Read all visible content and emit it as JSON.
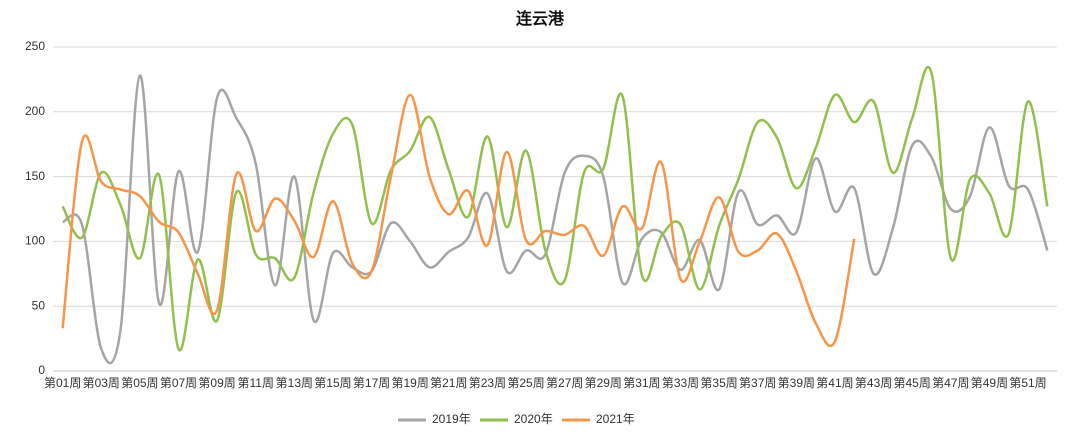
{
  "chart_data": {
    "type": "line",
    "title": "连云港",
    "categories": [
      "第01周",
      null,
      "第03周",
      null,
      "第05周",
      null,
      "第07周",
      null,
      "第09周",
      null,
      "第11周",
      null,
      "第13周",
      null,
      "第15周",
      null,
      "第17周",
      null,
      "第19周",
      null,
      "第21周",
      null,
      "第23周",
      null,
      "第25周",
      null,
      "第27周",
      null,
      "第29周",
      null,
      "第31周",
      null,
      "第33周",
      null,
      "第35周",
      null,
      "第37周",
      null,
      "第39周",
      null,
      "第41周",
      null,
      "第43周",
      null,
      "第45周",
      null,
      "第47周",
      null,
      "第49周",
      null,
      "第51周",
      null
    ],
    "series": [
      {
        "name": "2019年",
        "color": "#a5a5a5",
        "values": [
          115,
          113,
          17,
          32,
          228,
          52,
          154,
          92,
          211,
          195,
          160,
          66,
          150,
          39,
          91,
          80,
          77,
          114,
          100,
          80,
          92,
          103,
          137,
          77,
          93,
          90,
          153,
          166,
          150,
          68,
          102,
          107,
          78,
          101,
          63,
          138,
          113,
          120,
          107,
          164,
          123,
          141,
          75,
          110,
          174,
          165,
          125,
          135,
          188,
          143,
          140,
          93
        ]
      },
      {
        "name": "2020年",
        "color": "#92c04e",
        "values": [
          127,
          103,
          153,
          128,
          87,
          151,
          17,
          86,
          39,
          138,
          90,
          87,
          72,
          138,
          183,
          190,
          114,
          155,
          170,
          196,
          155,
          119,
          181,
          111,
          170,
          93,
          70,
          153,
          156,
          212,
          74,
          104,
          113,
          63,
          112,
          148,
          192,
          180,
          141,
          172,
          213,
          192,
          208,
          153,
          195,
          230,
          87,
          148,
          137,
          106,
          208,
          127
        ]
      },
      {
        "name": "2021年",
        "color": "#f5964a",
        "values": [
          33,
          177,
          146,
          140,
          135,
          115,
          107,
          75,
          47,
          152,
          108,
          133,
          116,
          88,
          131,
          83,
          77,
          150,
          213,
          150,
          121,
          139,
          97,
          169,
          101,
          108,
          105,
          112,
          89,
          127,
          110,
          161,
          71,
          100,
          134,
          92,
          93,
          106,
          77,
          37,
          23,
          102,
          null,
          null,
          null,
          null,
          null,
          null,
          null,
          null,
          null,
          null
        ]
      }
    ],
    "ylim": [
      0,
      250
    ],
    "yticks": [
      0,
      50,
      100,
      150,
      200,
      250
    ],
    "grid": true,
    "legend": "bottom"
  }
}
